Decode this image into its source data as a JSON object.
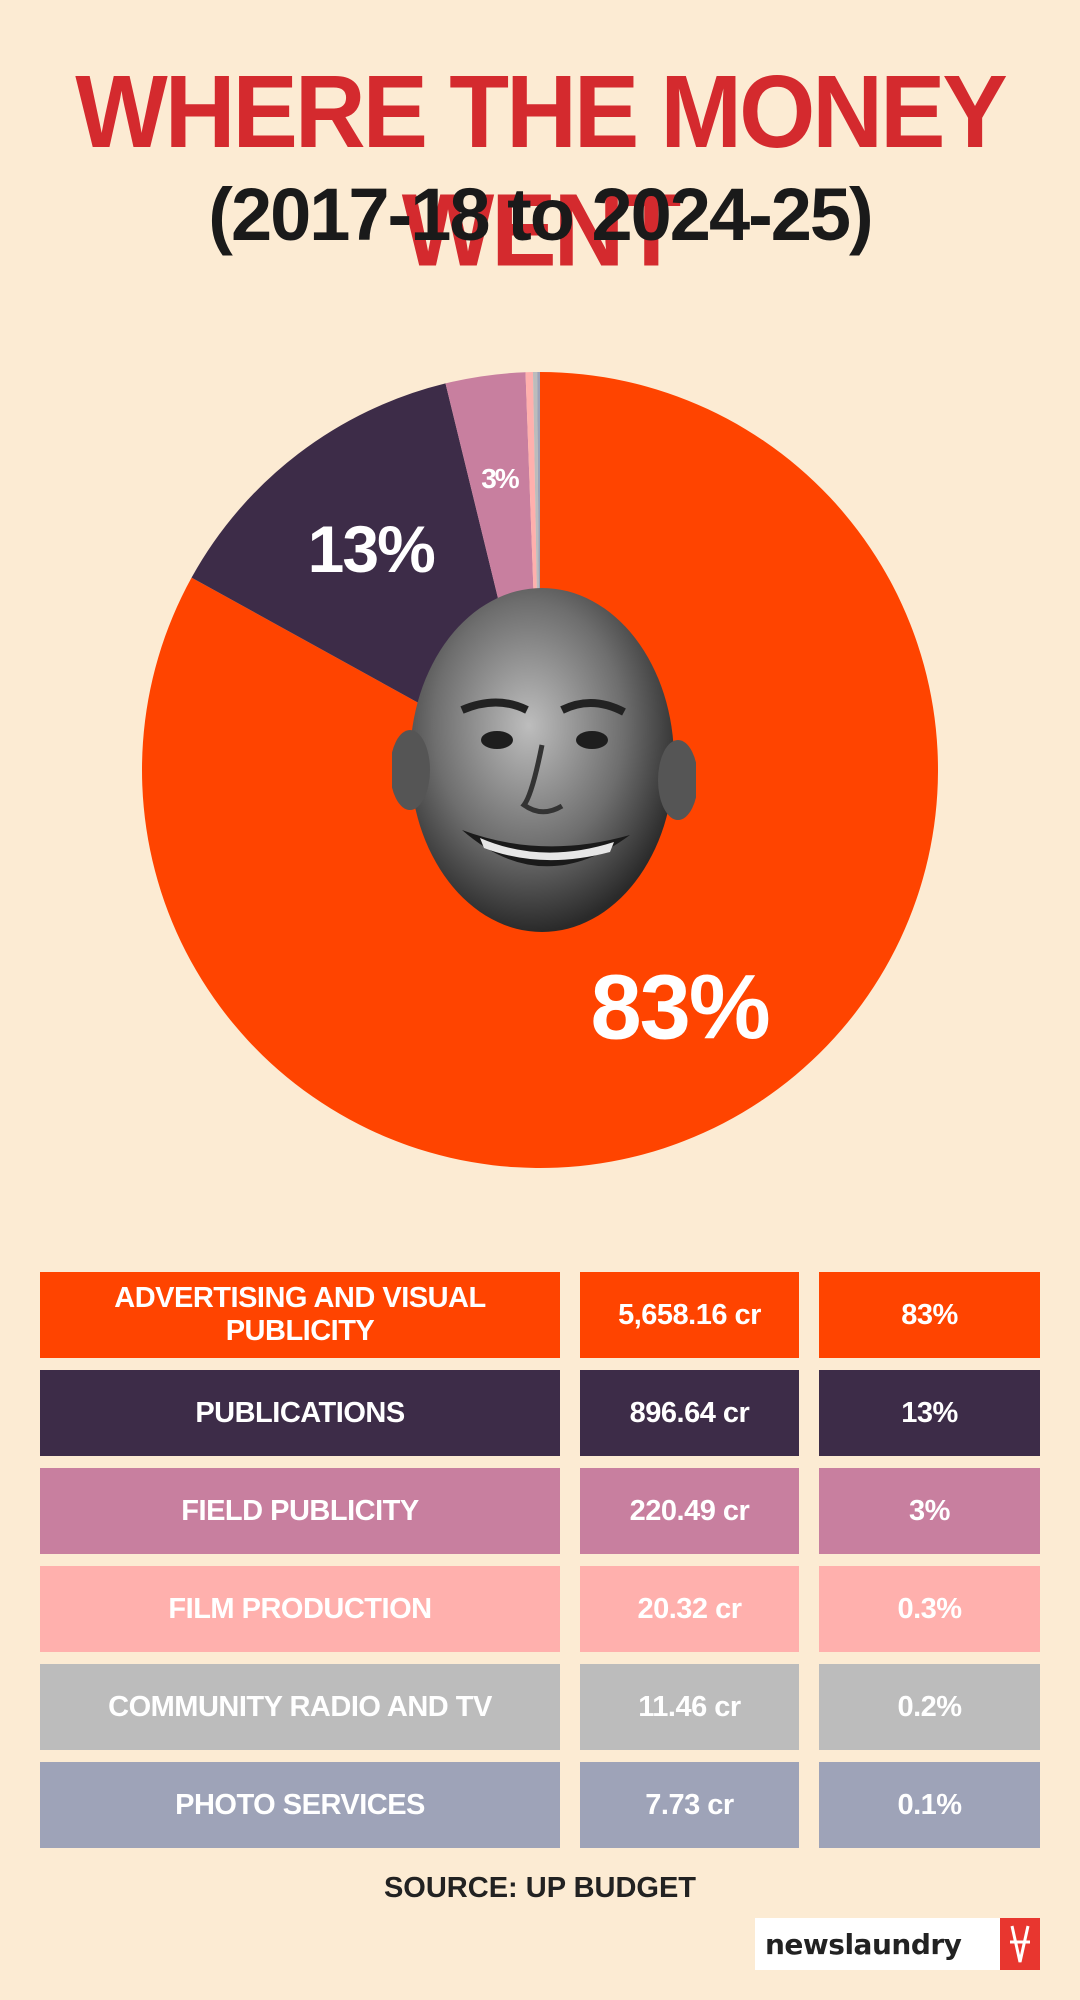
{
  "title": "WHERE THE MONEY WENT",
  "subtitle": "(2017-18 to 2024-25)",
  "source": "SOURCE: UP BUDGET",
  "brand": "newslaundry",
  "chart_data": {
    "type": "pie",
    "title": "WHERE THE MONEY WENT",
    "subtitle": "(2017-18 to 2024-25)",
    "slices": [
      {
        "label": "ADVERTISING AND VISUAL PUBLICITY",
        "value": 5658.16,
        "amount": "5,658.16 cr",
        "percent_label": "83%",
        "color": "#ff4400"
      },
      {
        "label": "PUBLICATIONS",
        "value": 896.64,
        "amount": "896.64 cr",
        "percent_label": "13%",
        "color": "#3d2c48"
      },
      {
        "label": "FIELD PUBLICITY",
        "value": 220.49,
        "amount": "220.49 cr",
        "percent_label": "3%",
        "color": "#c87f9f"
      },
      {
        "label": "FILM PRODUCTION",
        "value": 20.32,
        "amount": "20.32 cr",
        "percent_label": "0.3%",
        "color": "#ffb0ad"
      },
      {
        "label": "COMMUNITY RADIO AND TV",
        "value": 11.46,
        "amount": "11.46 cr",
        "percent_label": "0.2%",
        "color": "#bcbcbc"
      },
      {
        "label": "PHOTO SERVICES",
        "value": 7.73,
        "amount": "7.73 cr",
        "percent_label": "0.1%",
        "color": "#9ea3b8"
      }
    ],
    "pie_labels_shown": [
      "83%",
      "13%",
      "3%"
    ]
  }
}
